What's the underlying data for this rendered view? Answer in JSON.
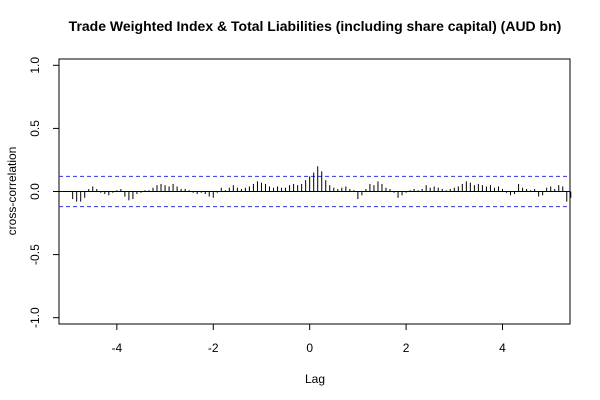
{
  "chart_data": {
    "type": "bar",
    "title": "Trade Weighted Index & Total Liabilities (including share capital) (AUD bn)",
    "xlabel": "Lag",
    "ylabel": "cross-correlation",
    "xlim": [
      -5.2,
      5.4
    ],
    "ylim": [
      -1.05,
      1.05
    ],
    "x_ticks": [
      -4,
      -2,
      0,
      2,
      4
    ],
    "x_tick_labels": [
      "-4",
      "-2",
      "0",
      "2",
      "4"
    ],
    "y_ticks": [
      -1.0,
      -0.5,
      0.0,
      0.5,
      1.0
    ],
    "y_tick_labels": [
      "-1.0",
      "-0.5",
      "0.0",
      "0.5",
      "1.0"
    ],
    "ci_upper": 0.12,
    "ci_lower": -0.12,
    "colors": {
      "bars": "#000000",
      "ci": "#3333dd",
      "zero_line": "#000000",
      "frame": "#000000"
    },
    "lag_start": -4.9167,
    "lag_step": 0.08333,
    "values": [
      -0.06,
      -0.08,
      -0.08,
      -0.05,
      0.02,
      0.04,
      0.02,
      -0.01,
      -0.02,
      -0.03,
      -0.01,
      0.01,
      0.02,
      -0.04,
      -0.07,
      -0.06,
      -0.02,
      -0.01,
      0.01,
      0.01,
      0.03,
      0.05,
      0.06,
      0.05,
      0.04,
      0.06,
      0.04,
      0.02,
      0.02,
      0.01,
      -0.01,
      -0.02,
      -0.01,
      -0.02,
      -0.04,
      -0.05,
      -0.01,
      0.03,
      0.01,
      0.03,
      0.05,
      0.03,
      0.02,
      0.03,
      0.04,
      0.06,
      0.08,
      0.07,
      0.06,
      0.04,
      0.03,
      0.04,
      0.03,
      0.03,
      0.05,
      0.06,
      0.05,
      0.06,
      0.09,
      0.12,
      0.15,
      0.2,
      0.16,
      0.09,
      0.05,
      0.03,
      0.02,
      0.03,
      0.04,
      0.02,
      0.01,
      -0.06,
      -0.03,
      0.02,
      0.06,
      0.05,
      0.08,
      0.06,
      0.03,
      0.02,
      -0.01,
      -0.05,
      -0.03,
      -0.01,
      0.01,
      0.02,
      0.01,
      0.02,
      0.05,
      0.03,
      0.04,
      0.03,
      0.02,
      0.01,
      0.02,
      0.03,
      0.04,
      0.06,
      0.08,
      0.07,
      0.05,
      0.06,
      0.05,
      0.04,
      0.05,
      0.03,
      0.04,
      0.02,
      -0.01,
      -0.03,
      -0.02,
      0.06,
      0.03,
      0.02,
      0.01,
      0.02,
      -0.04,
      -0.03,
      0.03,
      0.04,
      0.02,
      0.05,
      0.04,
      -0.08,
      -0.05
    ]
  }
}
